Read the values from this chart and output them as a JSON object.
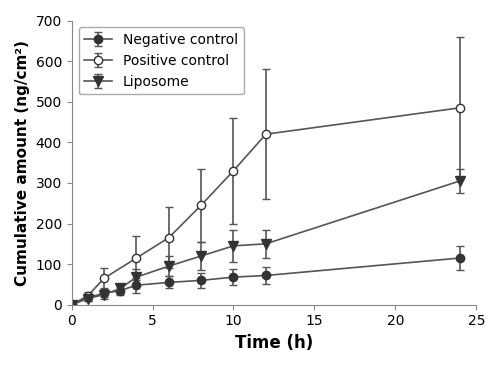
{
  "title": "",
  "xlabel": "Time (h)",
  "ylabel": "Cumulative amount (ng/cm²)",
  "xlim": [
    0,
    25
  ],
  "ylim": [
    0,
    700
  ],
  "xticks": [
    0,
    5,
    10,
    15,
    20,
    25
  ],
  "yticks": [
    0,
    100,
    200,
    300,
    400,
    500,
    600,
    700
  ],
  "series": [
    {
      "label": "Negative control",
      "x": [
        0,
        1,
        2,
        3,
        4,
        6,
        8,
        10,
        12,
        24
      ],
      "y": [
        0,
        18,
        28,
        35,
        48,
        55,
        60,
        68,
        72,
        115
      ],
      "yerr": [
        0,
        8,
        10,
        12,
        18,
        15,
        18,
        20,
        22,
        30
      ],
      "marker": "o",
      "fillstyle": "full",
      "color": "#555555",
      "markeredgecolor": "#333333",
      "markerfacecolor": "#333333"
    },
    {
      "label": "Positive control",
      "x": [
        0,
        1,
        2,
        4,
        6,
        8,
        10,
        12,
        24
      ],
      "y": [
        0,
        22,
        65,
        115,
        165,
        245,
        330,
        420,
        485
      ],
      "yerr": [
        0,
        10,
        25,
        55,
        75,
        90,
        130,
        160,
        175
      ],
      "marker": "o",
      "fillstyle": "none",
      "color": "#555555",
      "markeredgecolor": "#333333",
      "markerfacecolor": "white"
    },
    {
      "label": "Liposome",
      "x": [
        0,
        1,
        2,
        3,
        4,
        6,
        8,
        10,
        12,
        24
      ],
      "y": [
        0,
        15,
        25,
        40,
        68,
        95,
        120,
        145,
        150,
        305
      ],
      "yerr": [
        0,
        5,
        10,
        12,
        20,
        25,
        35,
        40,
        35,
        30
      ],
      "marker": "v",
      "fillstyle": "full",
      "color": "#555555",
      "markeredgecolor": "#333333",
      "markerfacecolor": "#333333"
    }
  ],
  "legend_loc": "upper left",
  "figsize": [
    5.0,
    3.67
  ],
  "dpi": 100,
  "background_color": "#ffffff"
}
